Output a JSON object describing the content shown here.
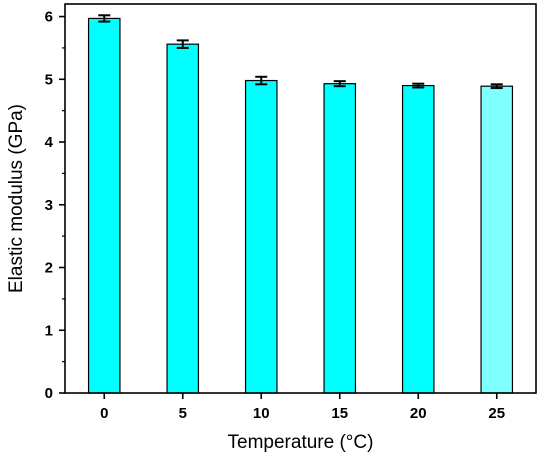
{
  "chart_data": {
    "type": "bar",
    "categories": [
      "0",
      "5",
      "10",
      "15",
      "20",
      "25"
    ],
    "values": [
      5.97,
      5.56,
      4.98,
      4.93,
      4.9,
      4.89
    ],
    "errors": [
      0.05,
      0.06,
      0.06,
      0.04,
      0.03,
      0.03
    ],
    "xlabel": "Temperature (°C)",
    "ylabel": "Elastic modulus (GPa)",
    "ylim": [
      0,
      6.2
    ],
    "yticks": [
      0,
      1,
      2,
      3,
      4,
      5,
      6
    ],
    "grid": false,
    "bar_colors": [
      "#00ffff",
      "#00ffff",
      "#00ffff",
      "#00ffff",
      "#00ffff",
      "#80ffff"
    ],
    "edge_color": "#000000"
  }
}
